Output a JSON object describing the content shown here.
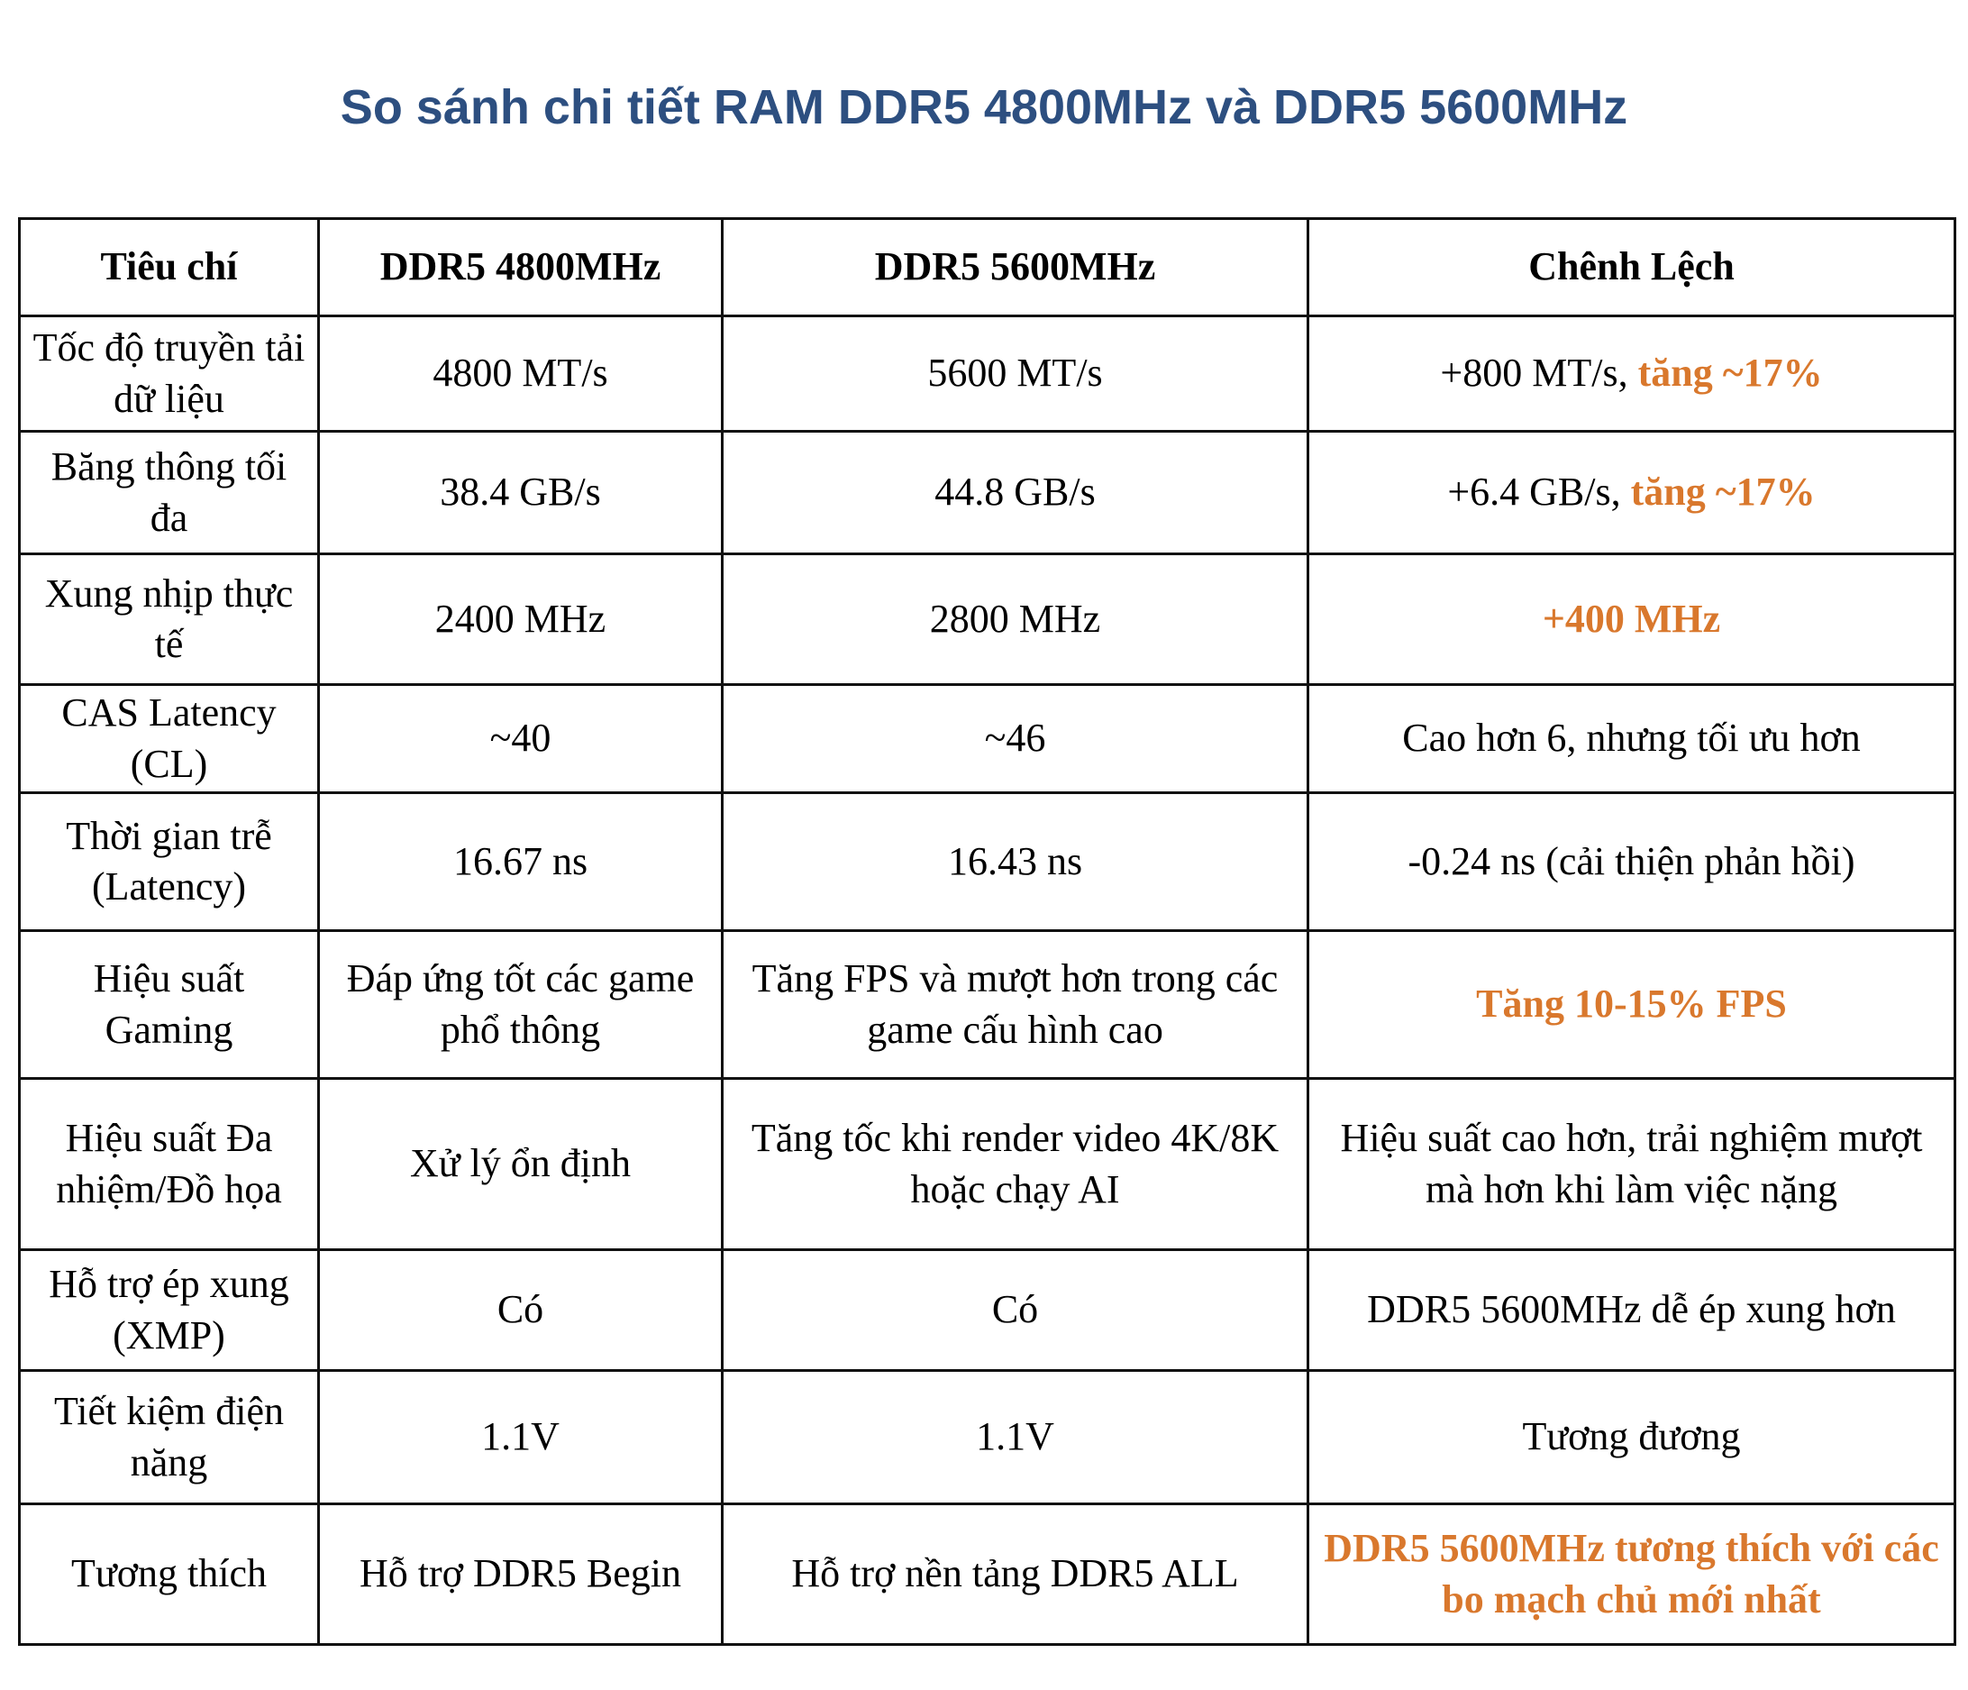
{
  "title": "So sánh chi tiết RAM DDR5 4800MHz và DDR5 5600MHz",
  "title_color": "#2d4f80",
  "accent_color": "#d9782d",
  "table": {
    "header": [
      "Tiêu chí",
      "DDR5 4800MHz",
      "DDR5 5600MHz",
      "Chênh Lệch"
    ],
    "rows": [
      [
        "Tốc độ truyền tải dữ liệu",
        "4800 MT/s",
        "5600 MT/s",
        {
          "text": "+800 MT/s, ",
          "accent": "tăng ~17%"
        }
      ],
      [
        "Băng thông tối đa",
        "38.4 GB/s",
        "44.8 GB/s",
        {
          "text": "+6.4 GB/s, ",
          "accent": "tăng ~17%"
        }
      ],
      [
        "Xung nhịp thực tế",
        "2400 MHz",
        "2800 MHz",
        {
          "accent": "+400 MHz"
        }
      ],
      [
        "CAS Latency (CL)",
        "~40",
        "~46",
        "Cao hơn 6, nhưng tối ưu hơn"
      ],
      [
        "Thời gian trễ (Latency)",
        "16.67 ns",
        "16.43 ns",
        "-0.24 ns (cải thiện phản hồi)"
      ],
      [
        "Hiệu suất Gaming",
        "Đáp ứng tốt các game phổ thông",
        "Tăng FPS và mượt hơn trong các game cấu hình cao",
        {
          "accent": "Tăng 10-15% FPS"
        }
      ],
      [
        "Hiệu suất Đa nhiệm/Đồ họa",
        "Xử lý ổn định",
        "Tăng tốc khi render video 4K/8K hoặc chạy AI",
        "Hiệu suất cao hơn, trải nghiệm mượt mà hơn khi làm việc nặng"
      ],
      [
        "Hỗ trợ ép xung (XMP)",
        "Có",
        "Có",
        "DDR5 5600MHz dễ ép xung hơn"
      ],
      [
        "Tiết kiệm điện năng",
        "1.1V",
        "1.1V",
        "Tương đương"
      ],
      [
        "Tương thích",
        "Hỗ trợ DDR5 Begin",
        "Hỗ trợ nền tảng DDR5 ALL",
        {
          "accent": "DDR5 5600MHz tương thích với các bo mạch chủ mới nhất"
        }
      ]
    ]
  }
}
